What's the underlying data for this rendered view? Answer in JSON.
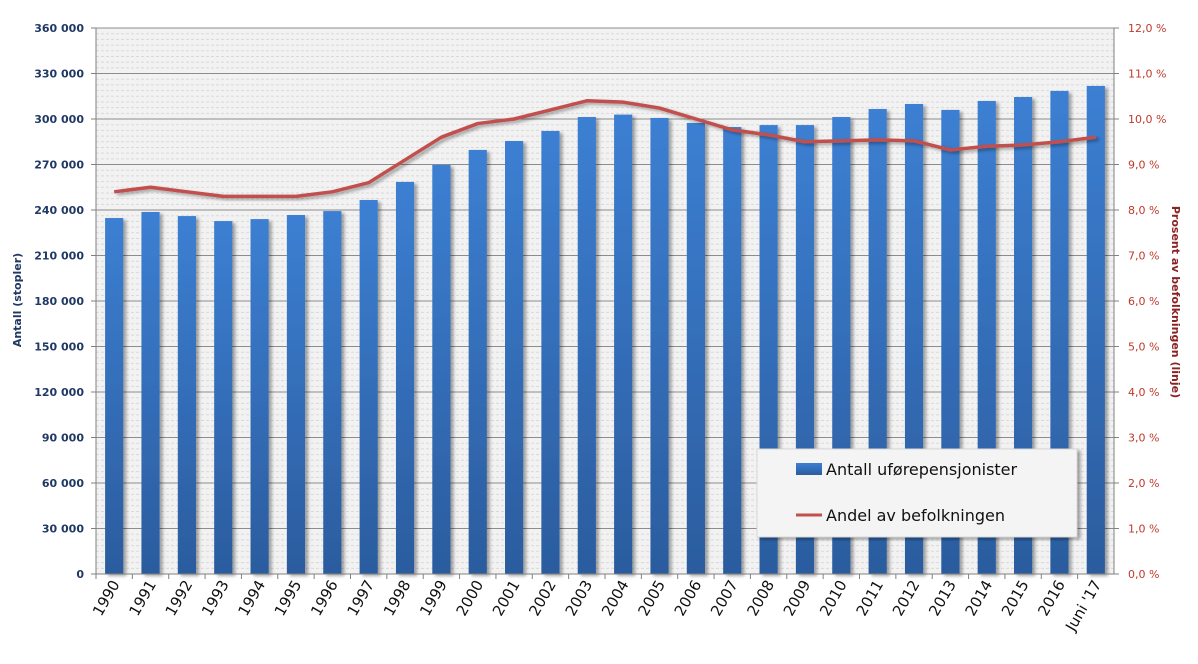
{
  "chart_data": {
    "type": "bar",
    "title": "",
    "categories": [
      "1990",
      "1991",
      "1992",
      "1993",
      "1994",
      "1995",
      "1996",
      "1997",
      "1998",
      "1999",
      "2000",
      "2001",
      "2002",
      "2003",
      "2004",
      "2005",
      "2006",
      "2007",
      "2008",
      "2009",
      "2010",
      "2011",
      "2012",
      "2013",
      "2014",
      "2015",
      "2016",
      "Juni '17"
    ],
    "series": [
      {
        "name": "Antall uførepensjonister",
        "type": "bar",
        "axis": "left",
        "color": "#3a7bc8",
        "values": [
          234700,
          238700,
          236000,
          232700,
          234000,
          236700,
          239300,
          246600,
          258500,
          269700,
          279600,
          285500,
          292100,
          301300,
          302900,
          300700,
          297400,
          294700,
          296000,
          296000,
          301300,
          306600,
          309900,
          306000,
          311900,
          314500,
          318500,
          321800
        ]
      },
      {
        "name": "Andel av befolkningen",
        "type": "line",
        "axis": "right",
        "color": "#c0504d",
        "values": [
          8.4,
          8.5,
          8.4,
          8.3,
          8.3,
          8.3,
          8.4,
          8.6,
          9.1,
          9.6,
          9.9,
          10.0,
          10.2,
          10.4,
          10.37,
          10.24,
          10.0,
          9.76,
          9.65,
          9.5,
          9.52,
          9.54,
          9.52,
          9.32,
          9.4,
          9.43,
          9.5,
          9.6
        ]
      }
    ],
    "y_left": {
      "label": "Antall (stopler)",
      "range": [
        0,
        360000
      ],
      "ticks": [
        "0",
        "30 000",
        "60 000",
        "90 000",
        "120 000",
        "150 000",
        "180 000",
        "210 000",
        "240 000",
        "270 000",
        "300 000",
        "330 000",
        "360 000"
      ],
      "color": "#1f3864"
    },
    "y_right": {
      "label": "Prosent av befolkningen (linje)",
      "range": [
        0,
        12
      ],
      "ticks": [
        "0,0 %",
        "1,0 %",
        "2,0 %",
        "3,0 %",
        "4,0 %",
        "5,0 %",
        "6,0 %",
        "7,0 %",
        "8,0 %",
        "9,0 %",
        "10,0 %",
        "11,0 %",
        "12,0 %"
      ],
      "color": "#c0392b",
      "label_color": "#8b2323"
    },
    "grid": true,
    "legend": "bottom-right"
  }
}
